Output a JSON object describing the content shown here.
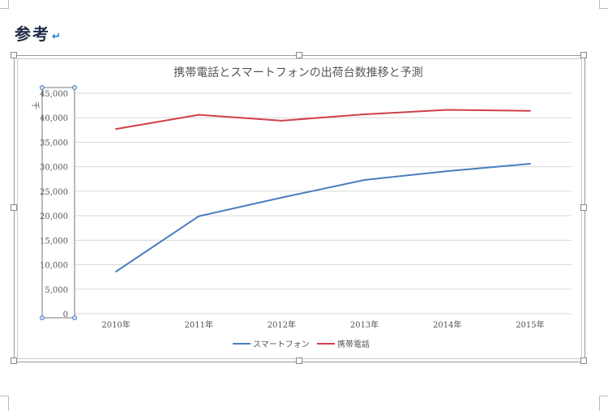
{
  "document": {
    "heading": "参考",
    "return_mark": "↵"
  },
  "chart_data": {
    "type": "line",
    "title": "携帯電話とスマートフォンの出荷台数推移と予測",
    "ylabel": "千",
    "xlabel": "",
    "categories": [
      "2010年",
      "2011年",
      "2012年",
      "2013年",
      "2014年",
      "2015年"
    ],
    "ylim": [
      0,
      45000
    ],
    "yticks": [
      "0",
      "5,000",
      "10,000",
      "15,000",
      "20,000",
      "25,000",
      "30,000",
      "35,000",
      "40,000",
      "45,000"
    ],
    "grid": true,
    "legend": "bottom",
    "series": [
      {
        "name": "スマートフォン",
        "color": "#4a7ebf",
        "values": [
          8600,
          19900,
          23700,
          27300,
          29100,
          30600
        ]
      },
      {
        "name": "携帯電話",
        "color": "#d0404a",
        "values": [
          37700,
          40600,
          39400,
          40700,
          41600,
          41400
        ]
      }
    ]
  }
}
